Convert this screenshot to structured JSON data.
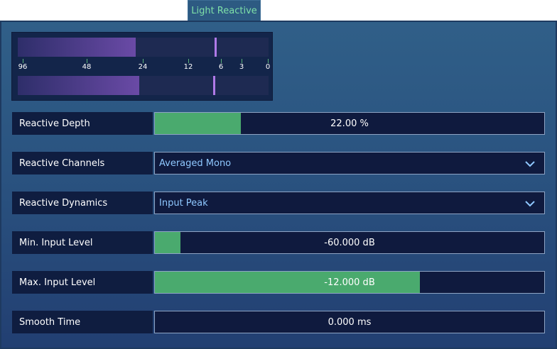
{
  "tab": {
    "label": "Light Reactive"
  },
  "meter": {
    "top_fill": 0.47,
    "top_peak": 0.785,
    "bottom_fill": 0.485,
    "bottom_peak": 0.78,
    "ticks": [
      "96",
      "48",
      "24",
      "12",
      "6",
      "3",
      "0"
    ]
  },
  "controls": [
    {
      "id": "reactive-depth",
      "label": "Reactive Depth",
      "type": "slider",
      "value": "22.00 %",
      "fill": 0.22
    },
    {
      "id": "reactive-channels",
      "label": "Reactive Channels",
      "type": "dropdown",
      "value": "Averaged Mono"
    },
    {
      "id": "reactive-dynamics",
      "label": "Reactive Dynamics",
      "type": "dropdown",
      "value": "Input Peak"
    },
    {
      "id": "min-input-level",
      "label": "Min. Input Level",
      "type": "slider",
      "value": "-60.000 dB",
      "fill": 0.065
    },
    {
      "id": "max-input-level",
      "label": "Max. Input Level",
      "type": "slider",
      "value": "-12.000 dB",
      "fill": 0.68
    },
    {
      "id": "smooth-time",
      "label": "Smooth Time",
      "type": "slider",
      "value": "0.000 ms",
      "fill": 0.0
    }
  ],
  "colors": {
    "slider_fill": "#4aaa6e",
    "dropdown_text": "#8fc8ff",
    "tab_text": "#7ee0a8",
    "meter_peak": "#b07ae8"
  }
}
